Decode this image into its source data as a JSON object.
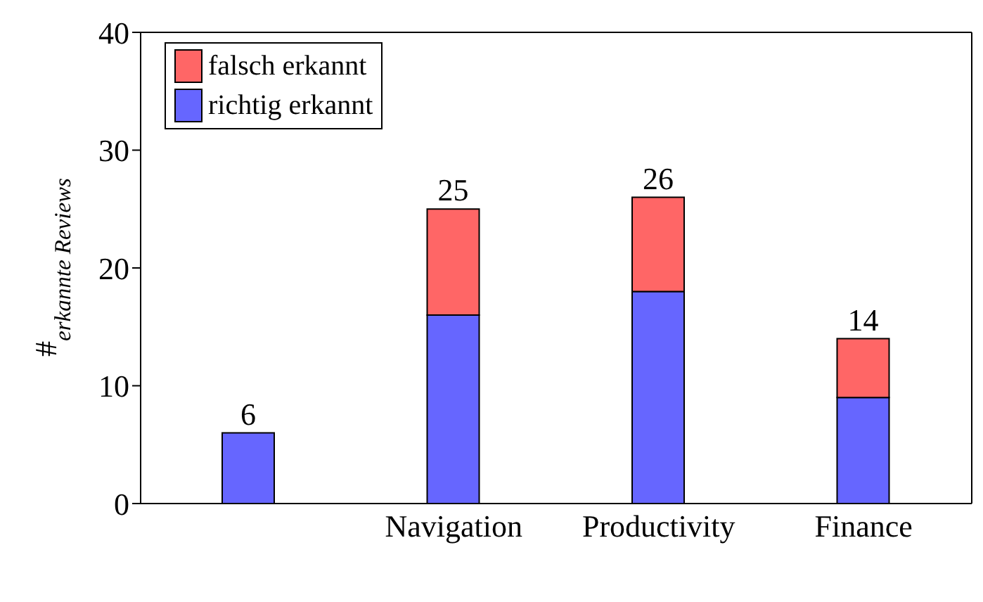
{
  "chart_data": {
    "type": "bar",
    "stacked": true,
    "ylabel": "#$_{erkannte Reviews}$",
    "categories": [
      null,
      "Navigation",
      "Productivity",
      "Finance"
    ],
    "series": [
      {
        "name": "richtig erkannt",
        "color": "#6666ff",
        "values": [
          6,
          16,
          18,
          9
        ]
      },
      {
        "name": "falsch erkannt",
        "color": "#ff6666",
        "values": [
          0,
          9,
          8,
          5
        ]
      }
    ],
    "totals": [
      "6",
      "25",
      "26",
      "14"
    ],
    "ylim": [
      0,
      40
    ],
    "yticks": [
      0,
      10,
      20,
      30,
      40
    ],
    "legend": "top left"
  }
}
